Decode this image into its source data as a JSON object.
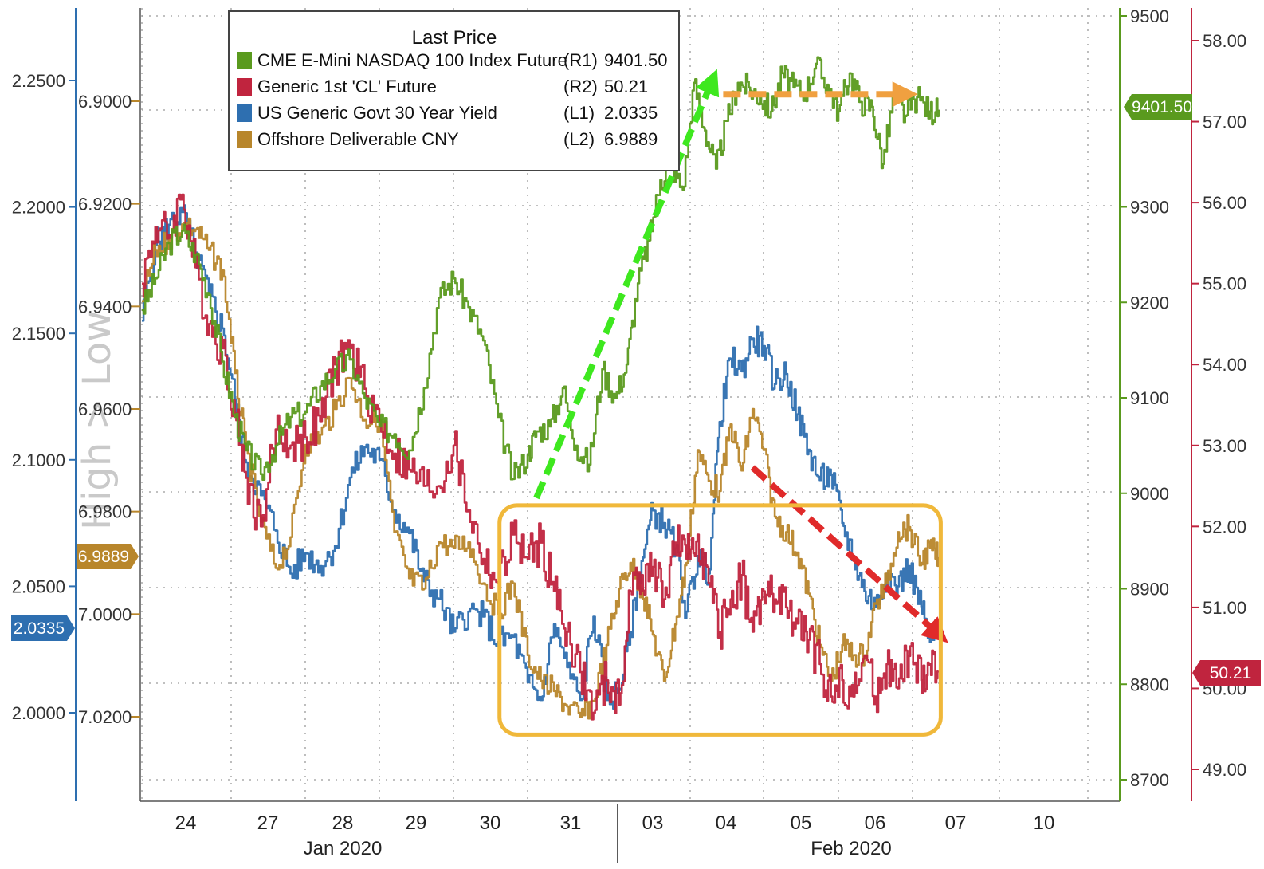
{
  "chart_data": {
    "type": "line",
    "legend": {
      "title": "Last Price",
      "placement": "top-left",
      "entries": [
        {
          "name": "CME E-Mini NASDAQ 100 Index Future",
          "axis": "(R1)",
          "last": "9401.50",
          "color": "#5a9a1e"
        },
        {
          "name": "Generic 1st 'CL' Future",
          "axis": "(R2)",
          "last": "50.21",
          "color": "#c0243e"
        },
        {
          "name": "US Generic Govt 30 Year Yield",
          "axis": "(L1)",
          "last": "2.0335",
          "color": "#2e6fb0"
        },
        {
          "name": "Offshore Deliverable CNY",
          "axis": "(L2)",
          "last": "6.9889",
          "color": "#b8862b"
        }
      ]
    },
    "watermark": "High > Low",
    "x_ticks": [
      "24",
      "27",
      "28",
      "29",
      "30",
      "31",
      "03",
      "04",
      "05",
      "06",
      "07",
      "10"
    ],
    "x_groups": [
      "Jan 2020",
      "Feb 2020"
    ],
    "axes": {
      "L1": {
        "ticks": [
          "2.2500",
          "2.2000",
          "2.1500",
          "2.1000",
          "2.0500",
          "2.0000"
        ],
        "range": [
          1.975,
          2.275
        ],
        "color": "#2e6fb0"
      },
      "L2": {
        "ticks": [
          "6.9000",
          "6.9200",
          "6.9400",
          "6.9600",
          "6.9800",
          "7.0000",
          "7.0200"
        ],
        "range": [
          6.889,
          7.038
        ],
        "inverted": true,
        "color": "#b8862b"
      },
      "R1": {
        "ticks": [
          "9500",
          "9300",
          "9200",
          "9100",
          "9000",
          "8900",
          "8800",
          "8700"
        ],
        "range": [
          8690,
          9510
        ],
        "color": "#5a9a1e"
      },
      "R2": {
        "ticks": [
          "58.00",
          "57.00",
          "56.00",
          "55.00",
          "54.00",
          "53.00",
          "52.00",
          "51.00",
          "50.00",
          "49.00"
        ],
        "range": [
          48.7,
          58.3
        ],
        "color": "#c0243e"
      }
    },
    "badges": {
      "L1": "2.0335",
      "L2": "6.9889",
      "R1": "9401.50",
      "R2": "50.21"
    },
    "series": [
      {
        "name": "CME E-Mini NASDAQ 100 Index Future",
        "axis": "R1",
        "color": "#5a9a1e",
        "x": [
          0,
          0.15,
          0.3,
          0.45,
          0.6,
          0.75,
          0.9,
          1.05,
          1.2,
          1.4,
          1.6,
          1.8,
          2.0,
          2.2,
          2.4,
          2.6,
          2.8,
          3.0,
          3.2,
          3.4,
          3.6,
          3.8,
          4.0,
          4.2,
          4.4,
          4.6,
          4.8,
          5.0,
          5.1,
          5.25,
          5.4,
          5.55,
          5.7,
          5.85,
          6.0,
          6.15,
          6.3,
          6.45,
          6.6,
          6.75,
          6.9,
          7.05,
          7.2,
          7.35,
          7.5,
          7.65,
          7.8,
          7.95,
          8.1,
          8.25,
          8.4,
          8.55,
          8.7,
          8.85,
          9.0,
          9.15,
          9.3,
          9.45,
          9.6,
          9.75,
          9.9,
          10.05,
          10.2,
          10.3
        ],
        "y": [
          9192,
          9225,
          9262,
          9275,
          9250,
          9208,
          9138,
          9080,
          9045,
          9020,
          9050,
          9080,
          9085,
          9112,
          9130,
          9140,
          9100,
          9070,
          9062,
          9045,
          9110,
          9205,
          9225,
          9195,
          9160,
          9080,
          9015,
          9040,
          9065,
          9070,
          9110,
          9050,
          9030,
          9130,
          9100,
          9135,
          9220,
          9265,
          9328,
          9345,
          9318,
          9430,
          9380,
          9340,
          9390,
          9430,
          9425,
          9415,
          9400,
          9440,
          9425,
          9420,
          9450,
          9428,
          9400,
          9440,
          9410,
          9405,
          9345,
          9420,
          9395,
          9415,
          9400,
          9401.5
        ]
      },
      {
        "name": "Generic 1st 'CL' Future",
        "axis": "R2",
        "color": "#c0243e",
        "x": [
          0,
          0.15,
          0.3,
          0.45,
          0.6,
          0.75,
          0.9,
          1.05,
          1.2,
          1.4,
          1.6,
          1.8,
          2.0,
          2.2,
          2.4,
          2.6,
          2.8,
          3.0,
          3.2,
          3.4,
          3.6,
          3.8,
          4.0,
          4.2,
          4.4,
          4.6,
          4.8,
          5.0,
          5.15,
          5.3,
          5.45,
          5.6,
          5.75,
          5.9,
          6.05,
          6.2,
          6.35,
          6.5,
          6.65,
          6.8,
          6.95,
          7.1,
          7.25,
          7.4,
          7.55,
          7.7,
          7.85,
          8.0,
          8.15,
          8.3,
          8.45,
          8.6,
          8.75,
          8.9,
          9.05,
          9.2,
          9.35,
          9.5,
          9.65,
          9.8,
          9.95,
          10.1,
          10.2,
          10.3
        ],
        "y": [
          55.0,
          55.7,
          55.6,
          56.1,
          55.2,
          54.5,
          54.2,
          53.4,
          52.6,
          52.0,
          53.2,
          53.0,
          53.1,
          53.3,
          54.0,
          54.2,
          53.7,
          53.3,
          52.9,
          52.7,
          52.5,
          52.5,
          53.0,
          52.2,
          51.6,
          51.3,
          51.9,
          51.6,
          51.8,
          51.2,
          50.7,
          50.2,
          49.7,
          50.1,
          49.8,
          51.2,
          51.4,
          51.5,
          51.1,
          51.8,
          51.6,
          51.9,
          51.3,
          50.7,
          51.1,
          51.4,
          50.7,
          51.2,
          51.1,
          51.0,
          50.8,
          50.6,
          50.3,
          49.9,
          50.1,
          49.9,
          50.4,
          49.9,
          50.3,
          50.0,
          50.4,
          50.1,
          50.3,
          50.21
        ]
      },
      {
        "name": "US Generic Govt 30 Year Yield",
        "axis": "L1",
        "color": "#2e6fb0",
        "x": [
          0,
          0.15,
          0.3,
          0.45,
          0.6,
          0.75,
          0.9,
          1.05,
          1.2,
          1.4,
          1.6,
          1.8,
          2.0,
          2.2,
          2.4,
          2.6,
          2.8,
          3.0,
          3.2,
          3.4,
          3.6,
          3.8,
          4.0,
          4.2,
          4.4,
          4.6,
          4.8,
          5.0,
          5.15,
          5.3,
          5.45,
          5.6,
          5.75,
          5.9,
          6.05,
          6.2,
          6.35,
          6.5,
          6.65,
          6.8,
          6.95,
          7.1,
          7.25,
          7.4,
          7.55,
          7.7,
          7.85,
          8.0,
          8.15,
          8.3,
          8.45,
          8.6,
          8.75,
          8.9,
          9.05,
          9.2,
          9.35,
          9.5,
          9.65,
          9.8,
          9.95,
          10.1,
          10.2,
          10.3
        ],
        "y": [
          2.155,
          2.185,
          2.193,
          2.198,
          2.182,
          2.166,
          2.152,
          2.124,
          2.099,
          2.086,
          2.072,
          2.055,
          2.063,
          2.058,
          2.066,
          2.093,
          2.105,
          2.1,
          2.08,
          2.071,
          2.052,
          2.045,
          2.032,
          2.04,
          2.038,
          2.028,
          2.03,
          2.012,
          2.005,
          2.035,
          2.018,
          2.005,
          2.038,
          2.005,
          2.009,
          2.032,
          2.06,
          2.08,
          2.075,
          2.065,
          2.04,
          2.062,
          2.055,
          2.115,
          2.14,
          2.135,
          2.148,
          2.145,
          2.13,
          2.134,
          2.118,
          2.104,
          2.092,
          2.094,
          2.075,
          2.062,
          2.048,
          2.042,
          2.055,
          2.05,
          2.058,
          2.042,
          2.028,
          2.0335
        ]
      },
      {
        "name": "Offshore Deliverable CNY",
        "axis": "L2",
        "color": "#b8862b",
        "x": [
          0,
          0.15,
          0.3,
          0.45,
          0.6,
          0.75,
          0.9,
          1.05,
          1.2,
          1.4,
          1.6,
          1.8,
          2.0,
          2.2,
          2.4,
          2.6,
          2.8,
          3.0,
          3.2,
          3.4,
          3.6,
          3.8,
          4.0,
          4.2,
          4.4,
          4.6,
          4.8,
          5.0,
          5.15,
          5.3,
          5.45,
          5.6,
          5.75,
          5.9,
          6.05,
          6.2,
          6.35,
          6.5,
          6.65,
          6.8,
          6.95,
          7.1,
          7.25,
          7.4,
          7.55,
          7.7,
          7.85,
          8.0,
          8.15,
          8.3,
          8.45,
          8.6,
          8.75,
          8.9,
          9.05,
          9.2,
          9.35,
          9.5,
          9.65,
          9.8,
          9.95,
          10.1,
          10.2,
          10.3
        ],
        "y": [
          6.939,
          6.929,
          6.927,
          6.924,
          6.925,
          6.929,
          6.933,
          6.953,
          6.968,
          6.982,
          6.991,
          6.985,
          6.967,
          6.965,
          6.96,
          6.954,
          6.962,
          6.962,
          6.984,
          6.993,
          6.995,
          6.986,
          6.987,
          6.986,
          6.994,
          7.0,
          6.994,
          7.008,
          7.013,
          7.015,
          7.018,
          7.02,
          7.017,
          7.006,
          6.995,
          6.99,
          6.995,
          7.004,
          7.013,
          7.002,
          6.99,
          6.968,
          6.974,
          6.976,
          6.963,
          6.972,
          6.96,
          6.968,
          6.981,
          6.984,
          6.988,
          6.996,
          7.006,
          7.013,
          7.006,
          7.008,
          7.008,
          6.998,
          6.994,
          6.984,
          6.983,
          6.99,
          6.987,
          6.9889
        ]
      }
    ],
    "annotations": [
      {
        "type": "dashed-arrow",
        "color": "#3ee81f",
        "from": {
          "x": 5.1,
          "axis": "R1",
          "y": 8995
        },
        "to": {
          "x": 7.3,
          "axis": "R1",
          "y": 9432
        }
      },
      {
        "type": "dashed-arrow",
        "color": "#f0a040",
        "from": {
          "x": 7.45,
          "axis": "R1",
          "y": 9418
        },
        "to": {
          "x": 9.9,
          "axis": "R1",
          "y": 9418
        }
      },
      {
        "type": "dashed-arrow",
        "color": "#e02a2a",
        "from": {
          "x": 7.85,
          "axis": "L1",
          "y": 2.097
        },
        "to": {
          "x": 10.3,
          "axis": "L1",
          "y": 2.031
        }
      },
      {
        "type": "rounded-box",
        "color": "#f0b83a",
        "x_range": [
          4.75,
          10.6
        ],
        "axis": "R1",
        "y_range": [
          8764,
          8979
        ]
      }
    ],
    "grid": true
  }
}
